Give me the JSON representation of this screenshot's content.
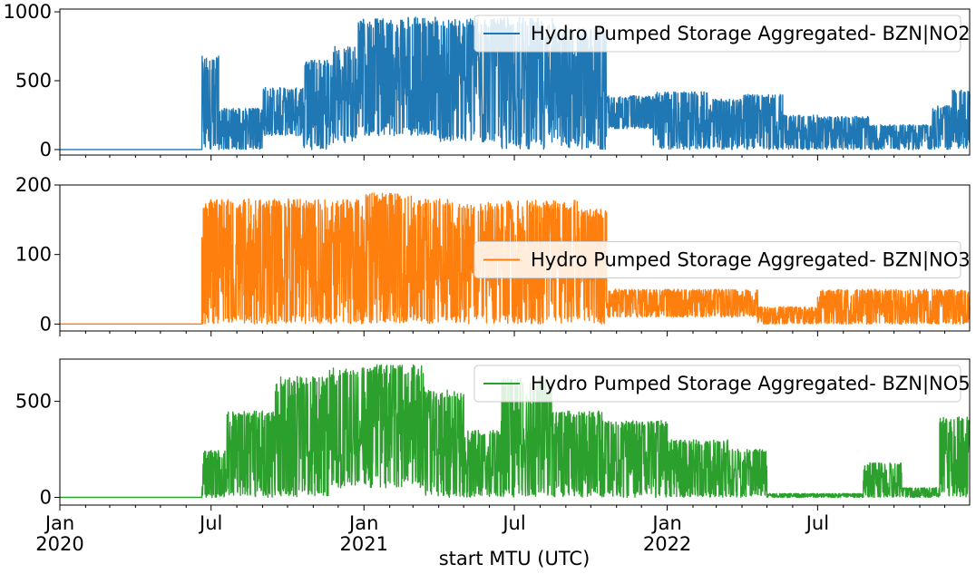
{
  "figure": {
    "xlabel": "start MTU (UTC)",
    "x_ticks": [
      {
        "label": "Jan",
        "sublabel": "2020",
        "date": "2020-01-01"
      },
      {
        "label": "Jul",
        "sublabel": "",
        "date": "2020-07-01"
      },
      {
        "label": "Jan",
        "sublabel": "2021",
        "date": "2021-01-01"
      },
      {
        "label": "Jul",
        "sublabel": "",
        "date": "2021-07-01"
      },
      {
        "label": "Jan",
        "sublabel": "2022",
        "date": "2022-01-01"
      },
      {
        "label": "Jul",
        "sublabel": "",
        "date": "2022-07-01"
      }
    ]
  },
  "chart_data": [
    {
      "type": "line",
      "xlim": [
        "2020-01-01",
        "2022-12-31"
      ],
      "ylim": [
        -40,
        1020
      ],
      "yticks": [
        0,
        500,
        1000
      ],
      "color": "#1f77b4",
      "legend_position": "top-right",
      "grid": false,
      "series": [
        {
          "name": "Hydro Pumped Storage Aggregated- BZN|NO2",
          "segments": [
            {
              "start": "2020-01-01",
              "end": "2020-06-20",
              "min": 0,
              "max": 0
            },
            {
              "start": "2020-06-20",
              "end": "2020-07-10",
              "min": 0,
              "max": 680
            },
            {
              "start": "2020-07-10",
              "end": "2020-09-01",
              "min": 0,
              "max": 300
            },
            {
              "start": "2020-09-01",
              "end": "2020-10-20",
              "min": 100,
              "max": 450
            },
            {
              "start": "2020-10-20",
              "end": "2020-11-25",
              "min": 0,
              "max": 650
            },
            {
              "start": "2020-11-25",
              "end": "2020-12-25",
              "min": 50,
              "max": 750
            },
            {
              "start": "2020-12-25",
              "end": "2021-02-10",
              "min": 100,
              "max": 950
            },
            {
              "start": "2021-02-10",
              "end": "2021-04-01",
              "min": 100,
              "max": 960
            },
            {
              "start": "2021-04-01",
              "end": "2021-06-15",
              "min": 50,
              "max": 950
            },
            {
              "start": "2021-06-15",
              "end": "2021-08-20",
              "min": 0,
              "max": 960
            },
            {
              "start": "2021-08-20",
              "end": "2021-10-20",
              "min": 0,
              "max": 900
            },
            {
              "start": "2021-10-20",
              "end": "2021-12-15",
              "min": 150,
              "max": 390
            },
            {
              "start": "2021-12-15",
              "end": "2022-02-20",
              "min": 0,
              "max": 420
            },
            {
              "start": "2022-02-20",
              "end": "2022-04-01",
              "min": 0,
              "max": 370
            },
            {
              "start": "2022-04-01",
              "end": "2022-05-20",
              "min": 0,
              "max": 400
            },
            {
              "start": "2022-05-20",
              "end": "2022-07-01",
              "min": 0,
              "max": 250
            },
            {
              "start": "2022-07-01",
              "end": "2022-09-01",
              "min": 0,
              "max": 240
            },
            {
              "start": "2022-09-01",
              "end": "2022-11-15",
              "min": 0,
              "max": 180
            },
            {
              "start": "2022-11-15",
              "end": "2022-12-10",
              "min": 0,
              "max": 320
            },
            {
              "start": "2022-12-10",
              "end": "2022-12-31",
              "min": 0,
              "max": 430
            }
          ]
        }
      ]
    },
    {
      "type": "line",
      "xlim": [
        "2020-01-01",
        "2022-12-31"
      ],
      "ylim": [
        -10,
        200
      ],
      "yticks": [
        0,
        100,
        200
      ],
      "color": "#ff7f0e",
      "legend_position": "center-right",
      "grid": false,
      "series": [
        {
          "name": "Hydro Pumped Storage Aggregated- BZN|NO3",
          "segments": [
            {
              "start": "2020-01-01",
              "end": "2020-06-20",
              "min": 0,
              "max": 0
            },
            {
              "start": "2020-06-20",
              "end": "2020-09-01",
              "min": 0,
              "max": 180
            },
            {
              "start": "2020-09-01",
              "end": "2020-11-15",
              "min": 0,
              "max": 180
            },
            {
              "start": "2020-11-15",
              "end": "2021-01-01",
              "min": 0,
              "max": 180
            },
            {
              "start": "2021-01-01",
              "end": "2021-03-01",
              "min": 0,
              "max": 190
            },
            {
              "start": "2021-03-01",
              "end": "2021-05-01",
              "min": 0,
              "max": 180
            },
            {
              "start": "2021-05-01",
              "end": "2021-06-20",
              "min": 0,
              "max": 175
            },
            {
              "start": "2021-06-20",
              "end": "2021-09-15",
              "min": 0,
              "max": 178
            },
            {
              "start": "2021-09-15",
              "end": "2021-10-20",
              "min": 0,
              "max": 165
            },
            {
              "start": "2021-10-20",
              "end": "2022-04-20",
              "min": 10,
              "max": 50
            },
            {
              "start": "2022-04-20",
              "end": "2022-07-01",
              "min": 0,
              "max": 25
            },
            {
              "start": "2022-07-01",
              "end": "2022-12-31",
              "min": 0,
              "max": 50
            }
          ]
        }
      ]
    },
    {
      "type": "line",
      "xlim": [
        "2020-01-01",
        "2022-12-31"
      ],
      "ylim": [
        -40,
        720
      ],
      "yticks": [
        0,
        500
      ],
      "color": "#2ca02c",
      "legend_position": "top-right",
      "grid": false,
      "series": [
        {
          "name": "Hydro Pumped Storage Aggregated- BZN|NO5",
          "segments": [
            {
              "start": "2020-01-01",
              "end": "2020-06-20",
              "min": 0,
              "max": 0
            },
            {
              "start": "2020-06-20",
              "end": "2020-07-20",
              "min": 0,
              "max": 245
            },
            {
              "start": "2020-07-20",
              "end": "2020-09-15",
              "min": 0,
              "max": 450
            },
            {
              "start": "2020-09-15",
              "end": "2020-11-20",
              "min": 0,
              "max": 630
            },
            {
              "start": "2020-11-20",
              "end": "2021-01-15",
              "min": 50,
              "max": 680
            },
            {
              "start": "2021-01-15",
              "end": "2021-03-15",
              "min": 50,
              "max": 690
            },
            {
              "start": "2021-03-15",
              "end": "2021-05-01",
              "min": 0,
              "max": 560
            },
            {
              "start": "2021-05-01",
              "end": "2021-06-15",
              "min": 0,
              "max": 350
            },
            {
              "start": "2021-06-15",
              "end": "2021-08-15",
              "min": 0,
              "max": 620
            },
            {
              "start": "2021-08-15",
              "end": "2021-10-15",
              "min": 0,
              "max": 450
            },
            {
              "start": "2021-10-15",
              "end": "2022-01-01",
              "min": 0,
              "max": 400
            },
            {
              "start": "2022-01-01",
              "end": "2022-03-15",
              "min": 0,
              "max": 300
            },
            {
              "start": "2022-03-15",
              "end": "2022-05-01",
              "min": 0,
              "max": 250
            },
            {
              "start": "2022-05-01",
              "end": "2022-08-25",
              "min": 0,
              "max": 20
            },
            {
              "start": "2022-08-25",
              "end": "2022-10-10",
              "min": 0,
              "max": 180
            },
            {
              "start": "2022-10-10",
              "end": "2022-11-25",
              "min": 0,
              "max": 50
            },
            {
              "start": "2022-11-25",
              "end": "2022-12-31",
              "min": 0,
              "max": 420
            }
          ]
        }
      ]
    }
  ]
}
